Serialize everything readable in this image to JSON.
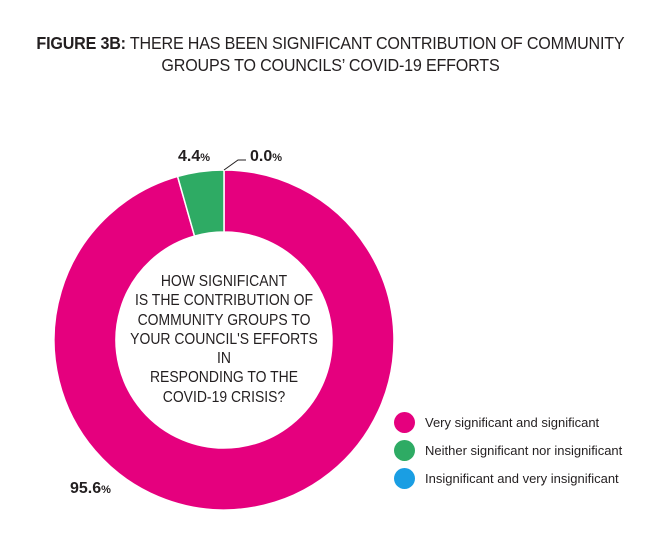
{
  "title": {
    "prefix": "FIGURE 3B:",
    "line1": "THERE HAS BEEN SIGNIFICANT CONTRIBUTION OF COMMUNITY",
    "line2": "GROUPS TO COUNCILS’ COVID-19 EFFORTS"
  },
  "center_question": [
    "HOW SIGNIFICANT",
    "IS THE CONTRIBUTION OF",
    "COMMUNITY GROUPS TO",
    "YOUR COUNCIL'S EFFORTS IN",
    "RESPONDING TO THE",
    "COVID-19 CRISIS?"
  ],
  "chart_data": {
    "type": "pie",
    "donut": true,
    "slices": [
      {
        "label": "Very significant and significant",
        "value": 95.6,
        "display": "95.6",
        "color": "#e5007e"
      },
      {
        "label": "Neither significant nor insignificant",
        "value": 4.4,
        "display": "4.4",
        "color": "#2eab64"
      },
      {
        "label": "Insignificant and very insignificant",
        "value": 0.0,
        "display": "0.0",
        "color": "#1a9ee3"
      }
    ],
    "unit": "%",
    "legend_position": "bottom-right"
  }
}
